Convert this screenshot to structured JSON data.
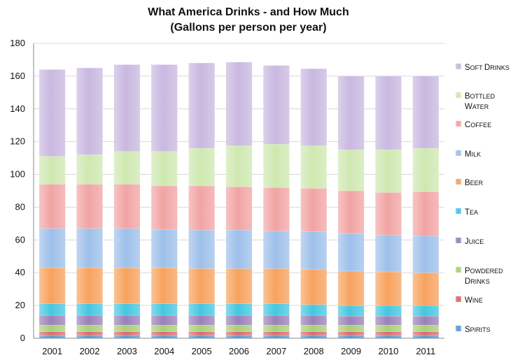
{
  "chart_data": {
    "type": "bar",
    "stacked": true,
    "title_lines": [
      "What America Drinks - and How Much",
      "(Gallons per person per year)"
    ],
    "xlabel": "",
    "ylabel": "",
    "ylim": [
      0,
      180
    ],
    "yticks": [
      0,
      20,
      40,
      60,
      80,
      100,
      120,
      140,
      160,
      180
    ],
    "grid": true,
    "legend_position": "right",
    "categories": [
      "2001",
      "2002",
      "2003",
      "2004",
      "2005",
      "2006",
      "2007",
      "2008",
      "2009",
      "2010",
      "2011"
    ],
    "series": [
      {
        "name": "Spirits",
        "color": "#5b9bd5",
        "values": [
          2,
          2,
          2,
          2,
          2,
          2,
          2,
          2,
          2,
          2,
          2
        ]
      },
      {
        "name": "Wine",
        "color": "#e06666",
        "values": [
          2,
          2,
          2,
          2,
          2,
          2,
          2,
          2,
          2,
          2,
          2
        ]
      },
      {
        "name": "Powdered Drinks",
        "color": "#a9cf78",
        "values": [
          4,
          4,
          4,
          4,
          4,
          4,
          4,
          4,
          4,
          4,
          4
        ]
      },
      {
        "name": "Juice",
        "color": "#9a81b8",
        "values": [
          6,
          6,
          6,
          6,
          6,
          6,
          6,
          6,
          5.5,
          5.5,
          5.5
        ]
      },
      {
        "name": "Tea",
        "color": "#45c6df",
        "values": [
          7,
          7,
          7,
          7,
          7,
          7,
          7,
          6.5,
          6.5,
          6.5,
          6.5
        ]
      },
      {
        "name": "Beer",
        "color": "#f7a25e",
        "values": [
          22,
          22,
          22,
          22,
          21.5,
          21.5,
          21.5,
          21.5,
          21,
          20.5,
          20
        ]
      },
      {
        "name": "Milk",
        "color": "#9ec0ea",
        "values": [
          24,
          24,
          24,
          23.5,
          23.5,
          23.5,
          23,
          23,
          23,
          22.5,
          22.5
        ]
      },
      {
        "name": "Coffee",
        "color": "#f2a4a4",
        "values": [
          27,
          27,
          27,
          26.5,
          27,
          26.5,
          26.5,
          26.5,
          26,
          26,
          27
        ]
      },
      {
        "name": "Bottled Water",
        "color": "#cfe8b0",
        "values": [
          17,
          18,
          20,
          21,
          23,
          25,
          26.5,
          26,
          25,
          26,
          26.5
        ]
      },
      {
        "name": "Soft Drinks",
        "color": "#c9b8e0",
        "values": [
          53,
          53,
          53,
          53,
          52,
          51,
          48,
          47,
          45,
          45,
          44
        ]
      }
    ]
  }
}
